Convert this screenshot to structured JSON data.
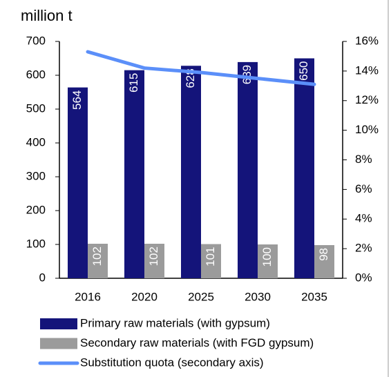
{
  "chart_data": {
    "type": "bar_line",
    "ylabel": "million t",
    "categories": [
      "2016",
      "2020",
      "2025",
      "2030",
      "2035"
    ],
    "series": [
      {
        "name": "Primary raw materials (with gypsum)",
        "color": "#14147a",
        "values": [
          564,
          615,
          628,
          639,
          650
        ]
      },
      {
        "name": "Secondary raw materials (with FGD gypsum)",
        "color": "#9b9b9b",
        "values": [
          102,
          102,
          101,
          100,
          98
        ]
      },
      {
        "name": "Substitution quota (secondary axis)",
        "color": "#5b8ff9",
        "axis": "y2",
        "values": [
          15.3,
          14.2,
          13.9,
          13.5,
          13.1
        ]
      }
    ],
    "ylim": [
      0,
      700
    ],
    "yticks": [
      0,
      100,
      200,
      300,
      400,
      500,
      600,
      700
    ],
    "y2lim": [
      0,
      16
    ],
    "y2ticks": [
      {
        "value": 0,
        "label": "0%"
      },
      {
        "value": 2,
        "label": "2%"
      },
      {
        "value": 4,
        "label": "4%"
      },
      {
        "value": 6,
        "label": "6%"
      },
      {
        "value": 8,
        "label": "8%"
      },
      {
        "value": 10,
        "label": "10%"
      },
      {
        "value": 12,
        "label": "12%"
      },
      {
        "value": 14,
        "label": "14%"
      },
      {
        "value": 16,
        "label": "16%"
      }
    ]
  }
}
